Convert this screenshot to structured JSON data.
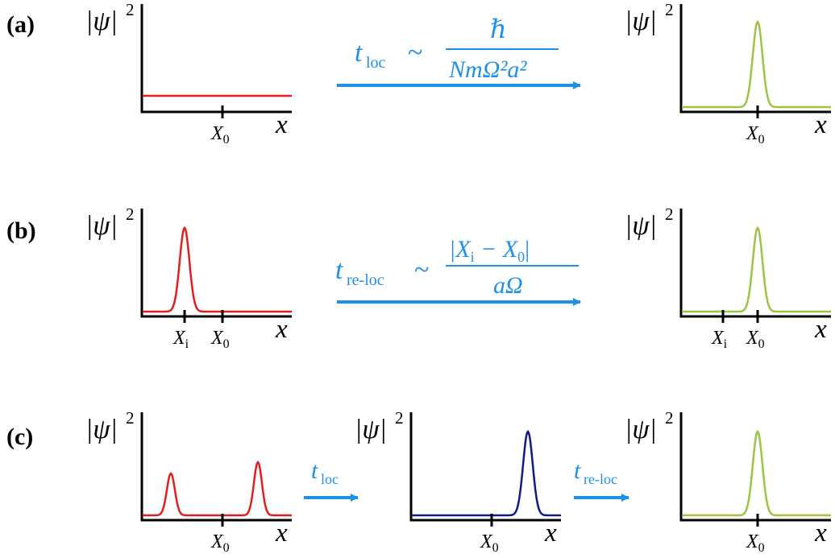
{
  "colors": {
    "initial": "#e01e1e",
    "intermediate": "#0f1a8c",
    "final": "#9dc443",
    "arrow": "#1e90e8",
    "axis": "#000000"
  },
  "labels": {
    "psi": "|ψ|",
    "psi_sup": "2",
    "x": "x",
    "X": "X",
    "sub_0": "0",
    "sub_i": "i"
  },
  "panels": {
    "a": {
      "label": "(a)",
      "arrow": {
        "t": "t",
        "t_sub": "loc",
        "sim": "~",
        "num": "ℏ",
        "den": "NmΩ²a²"
      }
    },
    "b": {
      "label": "(b)",
      "arrow": {
        "t": "t",
        "t_sub": "re-loc",
        "sim": "~",
        "num": "|X",
        "num_sub": "i",
        "num_rest": " − X",
        "num_sub2": "0",
        "num_end": "|",
        "den": "aΩ"
      }
    },
    "c": {
      "label": "(c)",
      "arrow1": {
        "t": "t",
        "t_sub": "loc"
      },
      "arrow2": {
        "t": "t",
        "t_sub": "re-loc"
      }
    }
  },
  "chart_data": {
    "type": "line",
    "description_axes": "Each small plot: vertical axis |ψ|^2, horizontal axis x with tick X_0 (and X_i where shown)",
    "plots": [
      {
        "panel": "a",
        "position": "left",
        "curve": "flat",
        "color": "initial",
        "ticks": [
          "X_0"
        ]
      },
      {
        "panel": "a",
        "position": "right",
        "curve": "gaussian at X_0",
        "color": "final",
        "ticks": [
          "X_0"
        ]
      },
      {
        "panel": "b",
        "position": "left",
        "curve": "gaussian at X_i",
        "color": "initial",
        "ticks": [
          "X_i",
          "X_0"
        ]
      },
      {
        "panel": "b",
        "position": "right",
        "curve": "gaussian at X_0",
        "color": "final",
        "ticks": [
          "X_i",
          "X_0"
        ]
      },
      {
        "panel": "c",
        "position": "left",
        "curve": "two gaussians",
        "color": "initial",
        "ticks": [
          "X_0"
        ]
      },
      {
        "panel": "c",
        "position": "middle",
        "curve": "single gaussian right of X_0",
        "color": "intermediate",
        "ticks": [
          "X_0"
        ]
      },
      {
        "panel": "c",
        "position": "right",
        "curve": "gaussian at X_0",
        "color": "final",
        "ticks": [
          "X_0"
        ]
      }
    ]
  }
}
